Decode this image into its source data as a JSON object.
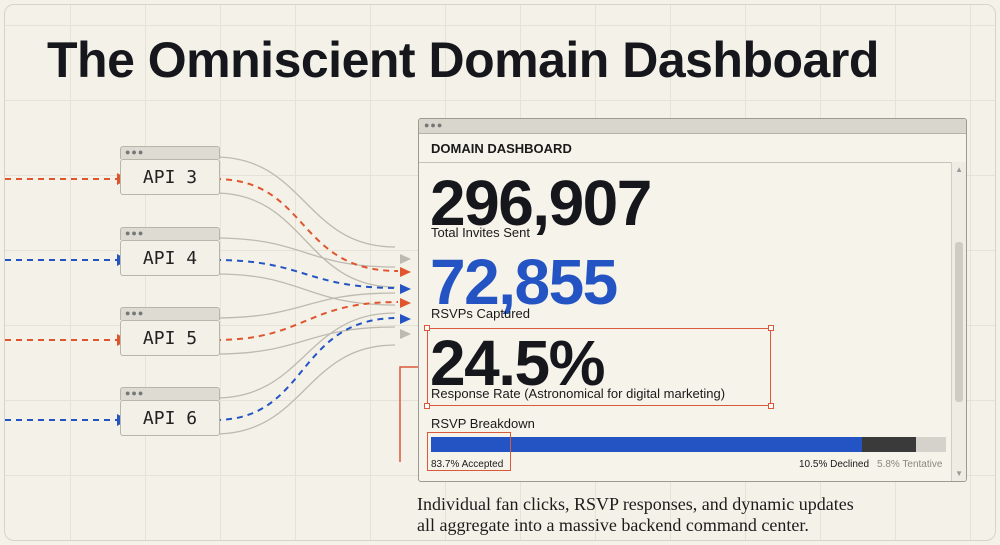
{
  "page": {
    "title": "The Omniscient Domain Dashboard",
    "caption_line1": "Individual fan clicks, RSVP responses, and dynamic updates",
    "caption_line2": "all aggregate into a massive backend command center."
  },
  "apis": [
    {
      "label": "API 3",
      "color": "#e0552e"
    },
    {
      "label": "API 4",
      "color": "#2454c4"
    },
    {
      "label": "API 5",
      "color": "#e0552e"
    },
    {
      "label": "API 6",
      "color": "#2454c4"
    }
  ],
  "window_dots": "●●●",
  "dashboard": {
    "heading": "DOMAIN DASHBOARD",
    "total_invites": "296,907",
    "total_invites_label": "Total Invites Sent",
    "rsvps": "72,855",
    "rsvps_label": "RSVPs Captured",
    "rate": "24.5%",
    "rate_label": "Response Rate (Astronomical for digital marketing)",
    "breakdown_title": "RSVP Breakdown",
    "breakdown": [
      {
        "label": "83.7% Accepted",
        "percent": 83.7,
        "color": "#2454c4"
      },
      {
        "label": "10.5% Declined",
        "percent": 10.5,
        "color": "#3a3a3a"
      },
      {
        "label": "5.8% Tentative",
        "percent": 5.8,
        "color": "#d4d2cb"
      }
    ]
  },
  "colors": {
    "accent_red": "#e0552e",
    "accent_blue": "#2454c4",
    "dark": "#16171c"
  }
}
